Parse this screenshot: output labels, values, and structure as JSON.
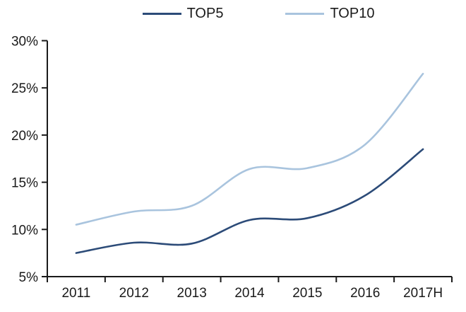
{
  "chart_data": {
    "type": "line",
    "title": "",
    "categories": [
      "2011",
      "2012",
      "2013",
      "2014",
      "2015",
      "2016",
      "2017H"
    ],
    "series": [
      {
        "name": "TOP5",
        "color": "#2c4b78",
        "values": [
          7.5,
          8.6,
          8.5,
          11.0,
          11.2,
          13.6,
          18.5
        ]
      },
      {
        "name": "TOP10",
        "color": "#a9c4de",
        "values": [
          10.5,
          11.9,
          12.5,
          16.4,
          16.5,
          19.0,
          26.5
        ]
      }
    ],
    "xlabel": "",
    "ylabel": "",
    "ylim": [
      5,
      30
    ],
    "ytick_step": 5,
    "ytick_labels": [
      "5%",
      "10%",
      "15%",
      "20%",
      "25%",
      "30%"
    ],
    "grid": false,
    "smooth": true,
    "legend_position": "top",
    "axis_color": "#1a1a1a",
    "background_color": "#ffffff"
  }
}
